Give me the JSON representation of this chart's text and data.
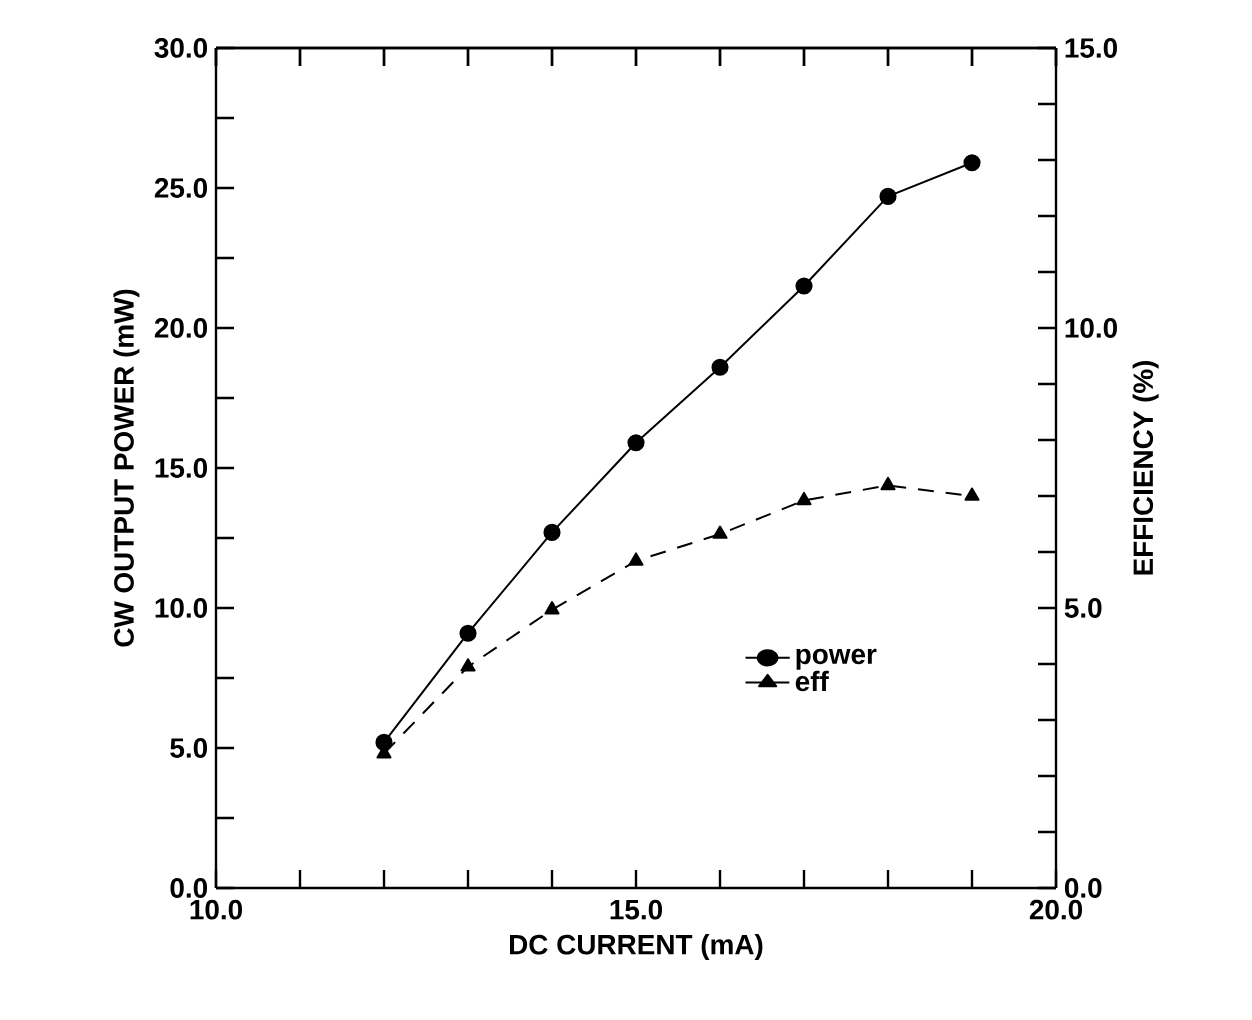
{
  "chart_data": {
    "type": "line",
    "xlabel": "DC CURRENT (mA)",
    "ylabel": "CW OUTPUT POWER (mW)",
    "y2label": "EFFICIENCY (%)",
    "x": [
      12,
      13,
      14,
      15,
      16,
      17,
      18,
      19
    ],
    "series": [
      {
        "name": "power",
        "color": "#000000",
        "marker": "circle",
        "line_style": "solid",
        "values": [
          5.2,
          9.1,
          12.7,
          15.9,
          18.6,
          21.5,
          24.7,
          25.9
        ]
      },
      {
        "name": "eff",
        "color": "#000000",
        "marker": "triangle",
        "line_style": "dashed",
        "axis": "y2",
        "values": [
          2.4,
          3.95,
          4.97,
          5.84,
          6.32,
          6.92,
          7.19,
          7.0
        ]
      }
    ],
    "xlim": [
      10,
      20
    ],
    "ylim": [
      0,
      30
    ],
    "y2lim": [
      0,
      15
    ],
    "xticks": [
      {
        "value": 10,
        "label": "10.0"
      },
      {
        "value": 11,
        "label": null
      },
      {
        "value": 12,
        "label": null
      },
      {
        "value": 13,
        "label": null
      },
      {
        "value": 14,
        "label": null
      },
      {
        "value": 15,
        "label": "15.0"
      },
      {
        "value": 16,
        "label": null
      },
      {
        "value": 17,
        "label": null
      },
      {
        "value": 18,
        "label": null
      },
      {
        "value": 19,
        "label": null
      },
      {
        "value": 20,
        "label": "20.0"
      }
    ],
    "yticks": [
      {
        "value": 0,
        "label": "0.0"
      },
      {
        "value": 2.5,
        "label": null
      },
      {
        "value": 5,
        "label": "5.0"
      },
      {
        "value": 7.5,
        "label": null
      },
      {
        "value": 10,
        "label": "10.0"
      },
      {
        "value": 12.5,
        "label": null
      },
      {
        "value": 15,
        "label": "15.0"
      },
      {
        "value": 17.5,
        "label": null
      },
      {
        "value": 20,
        "label": "20.0"
      },
      {
        "value": 22.5,
        "label": null
      },
      {
        "value": 25,
        "label": "25.0"
      },
      {
        "value": 27.5,
        "label": null
      },
      {
        "value": 30,
        "label": "30.0"
      }
    ],
    "y2ticks": [
      {
        "value": 0,
        "label": "0.0"
      },
      {
        "value": 1,
        "label": null
      },
      {
        "value": 2,
        "label": null
      },
      {
        "value": 3,
        "label": null
      },
      {
        "value": 4,
        "label": null
      },
      {
        "value": 5,
        "label": "5.0"
      },
      {
        "value": 6,
        "label": null
      },
      {
        "value": 7,
        "label": null
      },
      {
        "value": 8,
        "label": null
      },
      {
        "value": 9,
        "label": null
      },
      {
        "value": 10,
        "label": "10.0"
      },
      {
        "value": 11,
        "label": null
      },
      {
        "value": 12,
        "label": null
      },
      {
        "value": 13,
        "label": null
      },
      {
        "value": 14,
        "label": null
      },
      {
        "value": 15,
        "label": "15.0"
      }
    ],
    "grid": false,
    "legend": "bottom right"
  }
}
